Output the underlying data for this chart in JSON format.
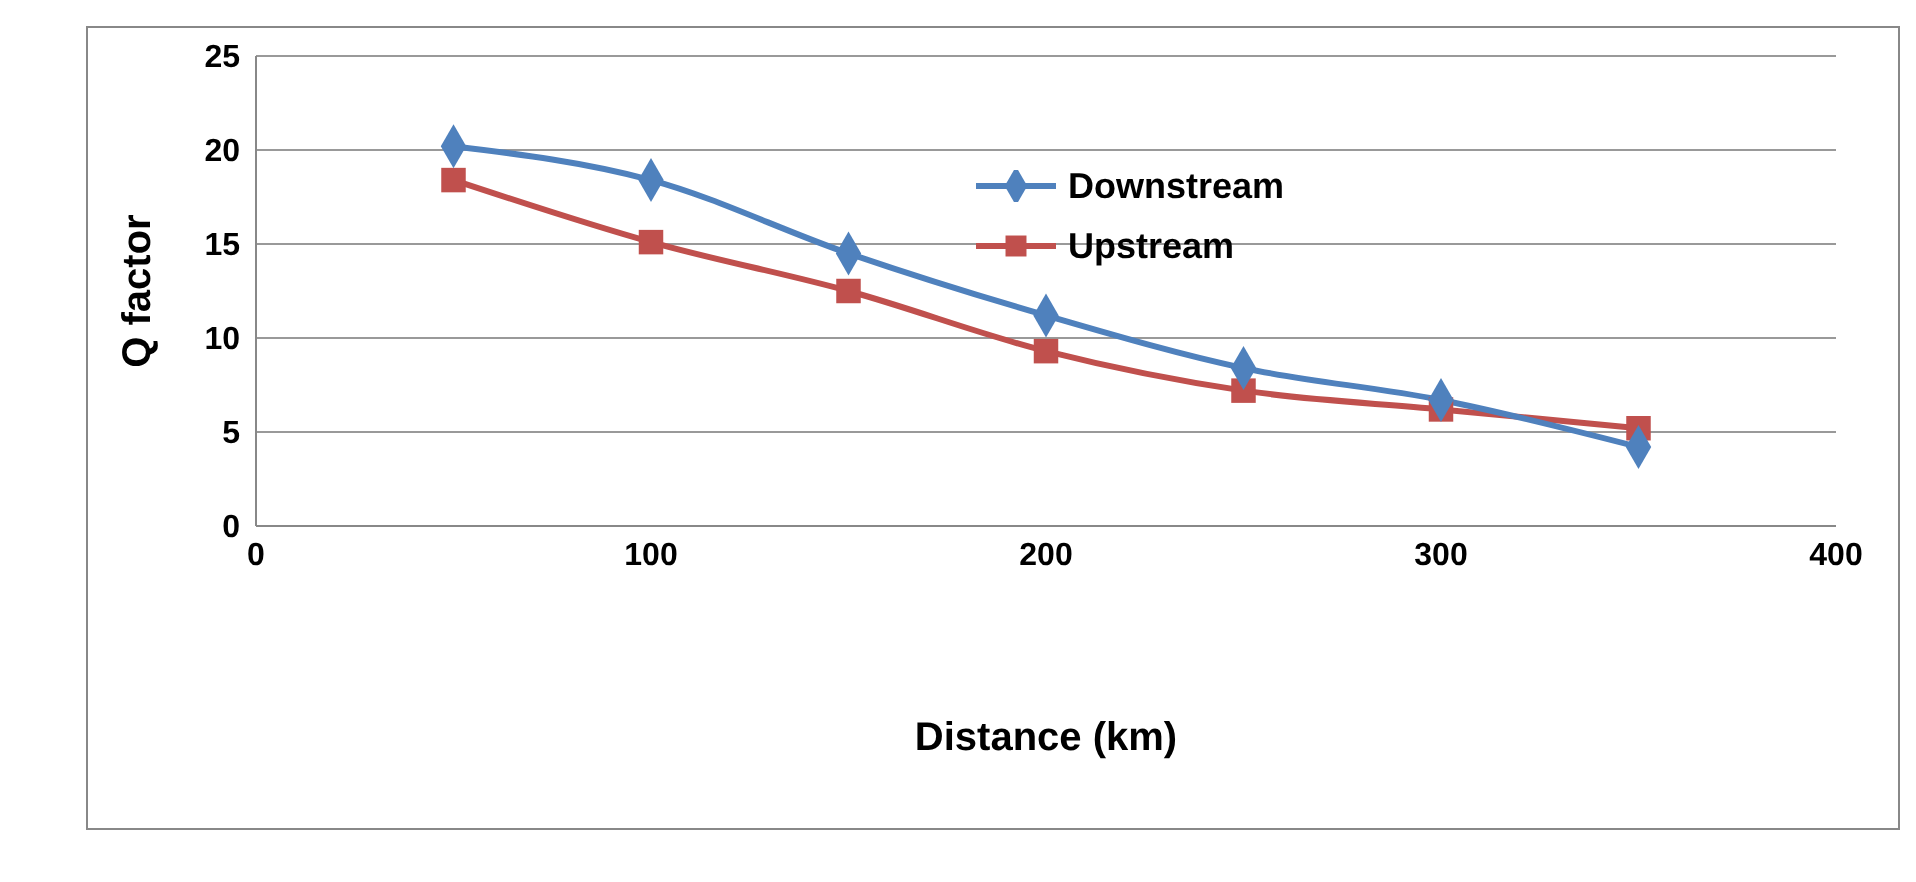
{
  "chart_data": {
    "type": "line",
    "xlabel": "Distance (km)",
    "ylabel": "Q factor",
    "xlim": [
      0,
      400
    ],
    "xticks": [
      0,
      100,
      200,
      300,
      400
    ],
    "ylim": [
      0,
      25
    ],
    "yticks": [
      0,
      5,
      10,
      15,
      20,
      25
    ],
    "grid": "y",
    "legend": "top",
    "line_style": "solid",
    "series": [
      {
        "name": "Downstream",
        "color": "#4f81bd",
        "marker": "diamond",
        "x": [
          50,
          100,
          150,
          200,
          250,
          300,
          350
        ],
        "values": [
          20.2,
          18.4,
          14.5,
          11.2,
          8.4,
          6.7,
          4.2
        ]
      },
      {
        "name": "Upstream",
        "color": "#c0504d",
        "marker": "square",
        "x": [
          50,
          100,
          150,
          200,
          250,
          300,
          350
        ],
        "values": [
          18.4,
          15.1,
          12.5,
          9.3,
          7.2,
          6.2,
          5.2
        ]
      }
    ]
  }
}
